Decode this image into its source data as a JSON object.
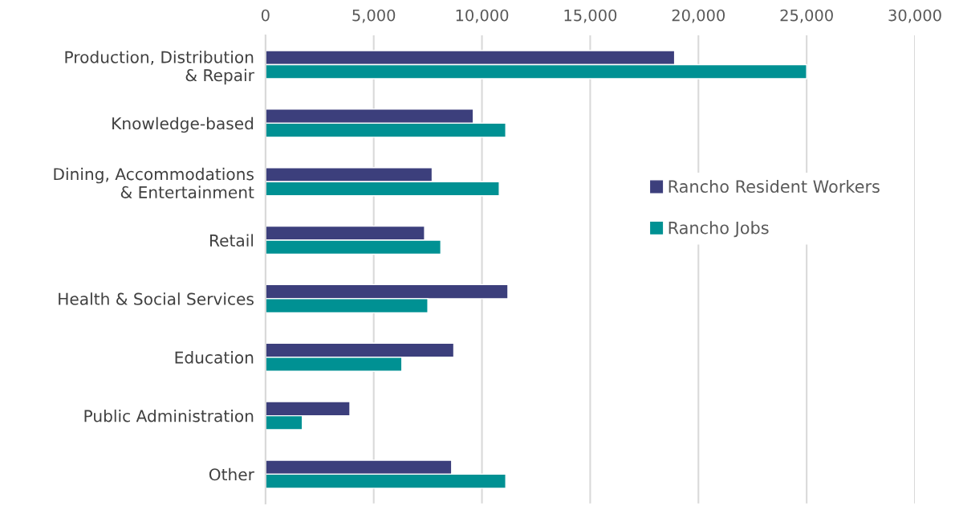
{
  "chart_data": {
    "type": "bar",
    "orientation": "horizontal",
    "categories": [
      "Production, Distribution\n& Repair",
      "Knowledge-based",
      "Dining, Accommodations\n& Entertainment",
      "Retail",
      "Health & Social Services",
      "Education",
      "Public Administration",
      "Other"
    ],
    "series": [
      {
        "name": "Rancho Resident Workers",
        "color": "#3c3f7c",
        "values": [
          18900,
          9600,
          7700,
          7350,
          11200,
          8700,
          3900,
          8600
        ]
      },
      {
        "name": "Rancho Jobs",
        "color": "#009193",
        "values": [
          25000,
          11100,
          10800,
          8100,
          7500,
          6300,
          1700,
          11100
        ]
      }
    ],
    "xlim": [
      0,
      30000
    ],
    "xticks": [
      {
        "value": 0,
        "label": "0"
      },
      {
        "value": 5000,
        "label": "5,000"
      },
      {
        "value": 10000,
        "label": "10,000"
      },
      {
        "value": 15000,
        "label": "15,000"
      },
      {
        "value": 20000,
        "label": "20,000"
      },
      {
        "value": 25000,
        "label": "25,000"
      },
      {
        "value": 30000,
        "label": "30,000"
      }
    ],
    "grid": "x",
    "legend": "right"
  }
}
